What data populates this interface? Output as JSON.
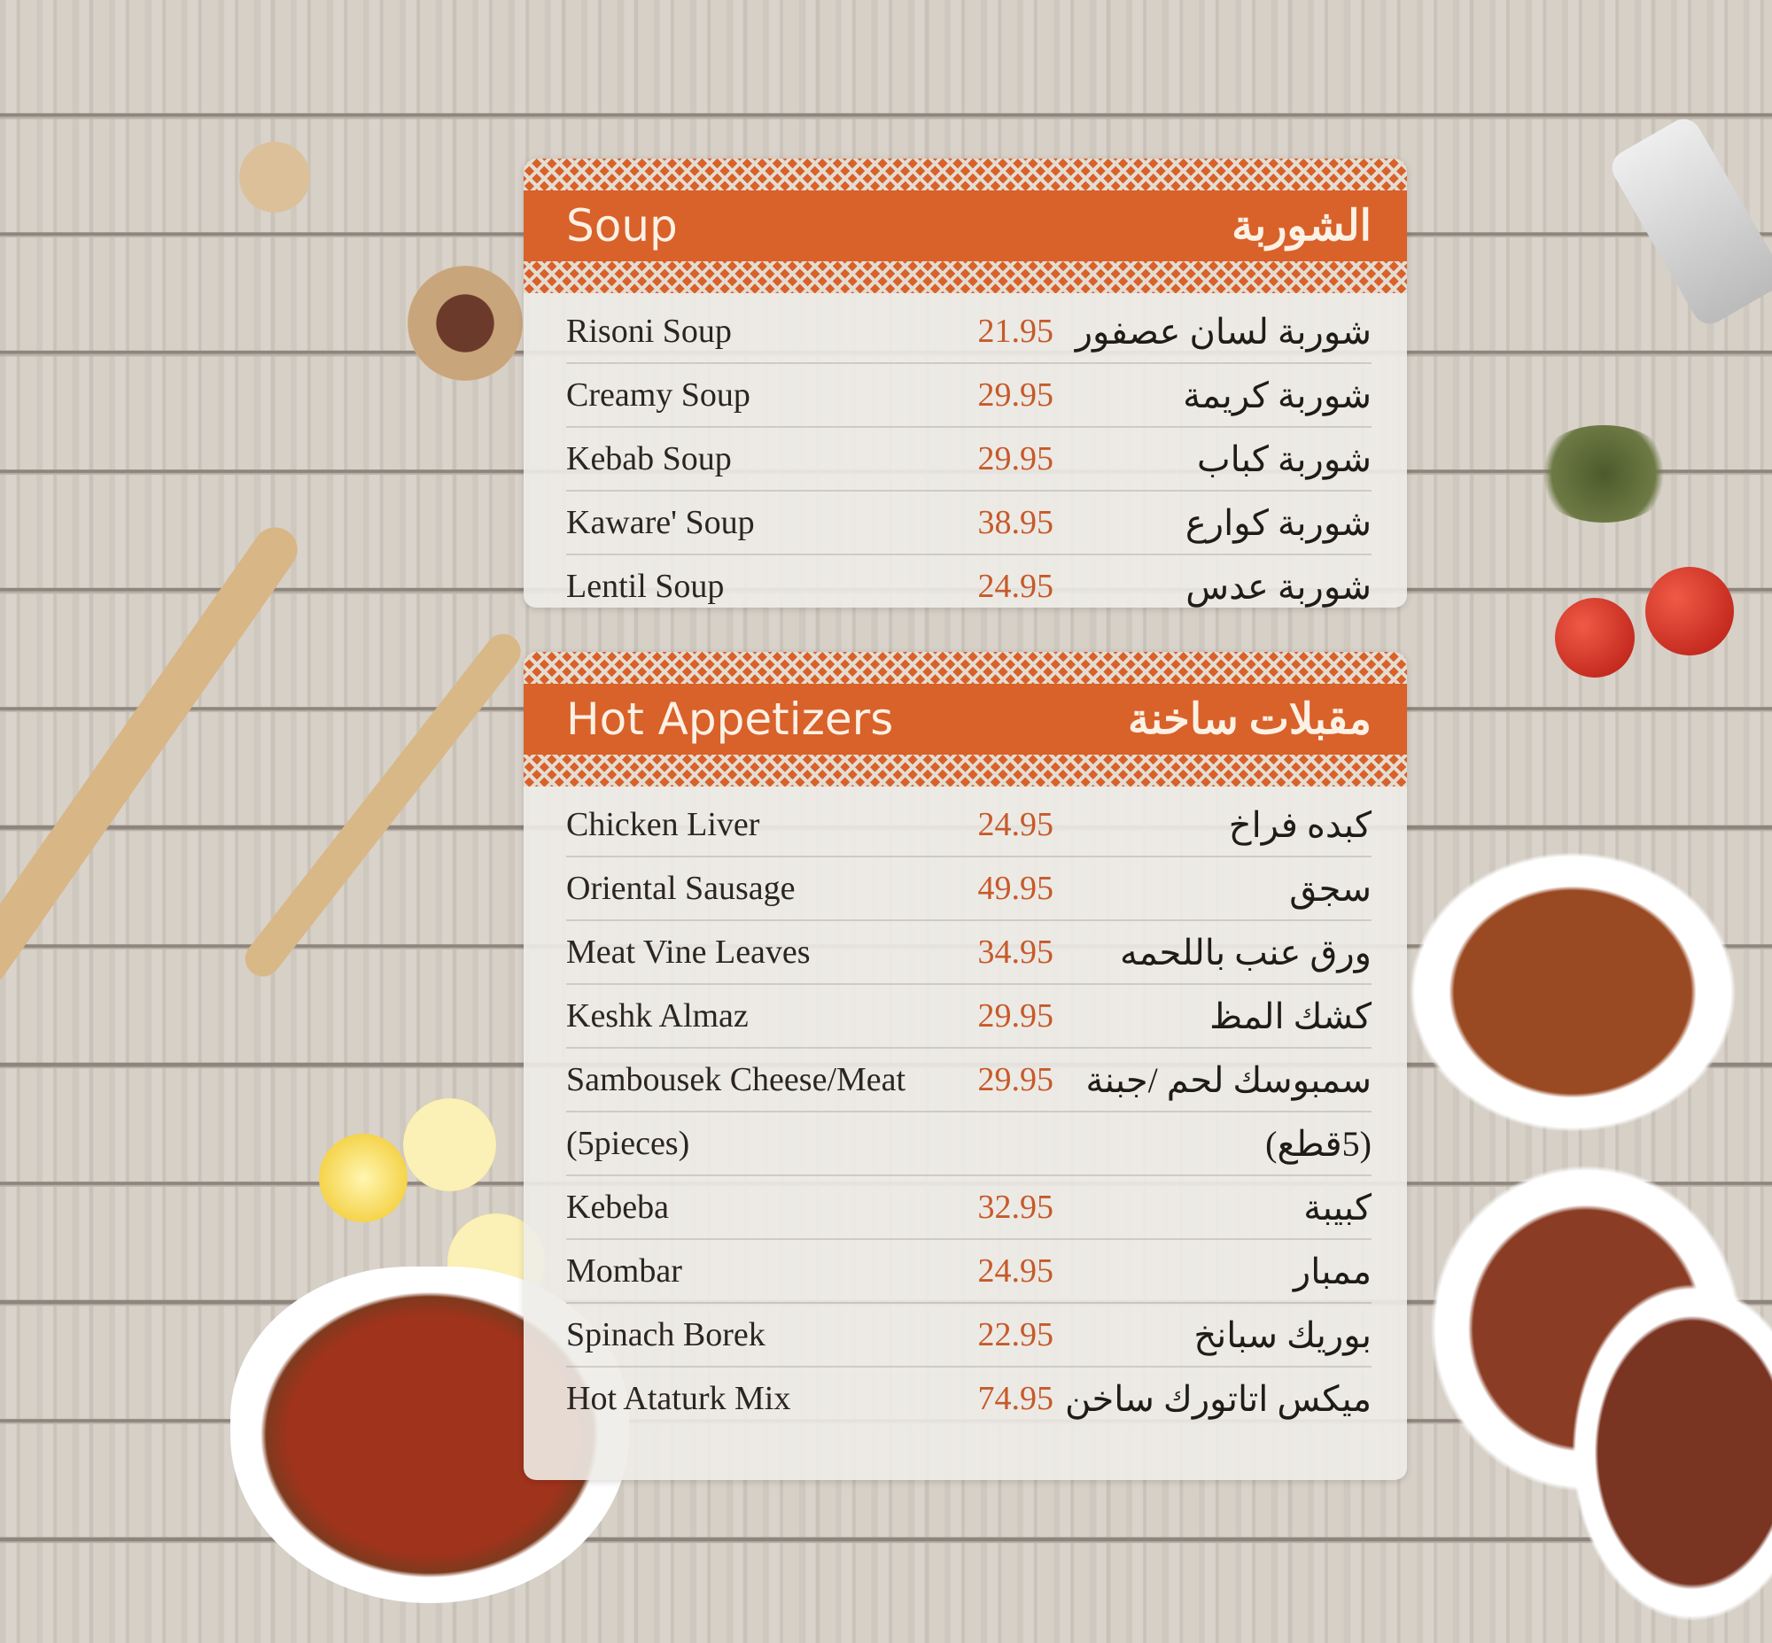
{
  "colors": {
    "accent": "#d9612a",
    "price": "#c65a2a"
  },
  "sections": [
    {
      "title_en": "Soup",
      "title_ar": "الشوربة",
      "items": [
        {
          "name": "Risoni Soup",
          "price": "21.95",
          "name_ar": "شوربة لسان عصفور"
        },
        {
          "name": "Creamy Soup",
          "price": "29.95",
          "name_ar": "شوربة كريمة"
        },
        {
          "name": "Kebab Soup",
          "price": "29.95",
          "name_ar": "شوربة كباب"
        },
        {
          "name": "Kaware' Soup",
          "price": "38.95",
          "name_ar": "شوربة كوارع"
        },
        {
          "name": "Lentil Soup",
          "price": "24.95",
          "name_ar": "شوربة عدس"
        }
      ]
    },
    {
      "title_en": "Hot Appetizers",
      "title_ar": "مقبلات ساخنة",
      "items": [
        {
          "name": "Chicken Liver",
          "price": "24.95",
          "name_ar": "كبده فراخ"
        },
        {
          "name": "Oriental Sausage",
          "price": "49.95",
          "name_ar": "سجق"
        },
        {
          "name": "Meat Vine Leaves",
          "price": "34.95",
          "name_ar": "ورق عنب باللحمه"
        },
        {
          "name": "Keshk Almaz",
          "price": "29.95",
          "name_ar": "كشك المظ"
        },
        {
          "name": "Sambousek Cheese/Meat",
          "price": "29.95",
          "name_ar": "سمبوسك لحم /جبنة"
        },
        {
          "name": "(5pieces)",
          "price": "",
          "name_ar": "(5قطع)"
        },
        {
          "name": "Kebeba",
          "price": "32.95",
          "name_ar": "كبيبة"
        },
        {
          "name": "Mombar",
          "price": "24.95",
          "name_ar": "ممبار"
        },
        {
          "name": "Spinach Borek",
          "price": "22.95",
          "name_ar": "بوريك سبانخ"
        },
        {
          "name": "Hot Ataturk Mix",
          "price": "74.95",
          "name_ar": "ميكس اتاتورك ساخن"
        }
      ]
    }
  ]
}
